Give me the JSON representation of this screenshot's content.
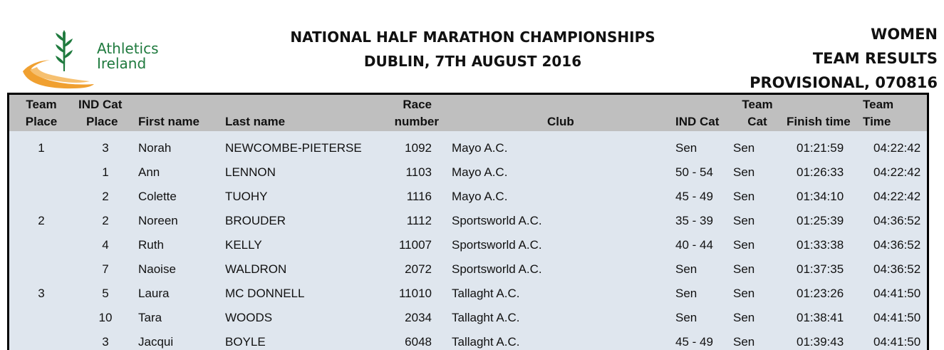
{
  "header": {
    "logo_text_line1": "Athletics",
    "logo_text_line2": "Ireland",
    "title_line1": "NATIONAL HALF MARATHON CHAMPIONSHIPS",
    "title_line2": "DUBLIN, 7TH AUGUST 2016",
    "right_line1": "WOMEN",
    "right_line2": "TEAM RESULTS",
    "right_line3": "PROVISIONAL, 070816"
  },
  "colors": {
    "logo_green": "#1f7a3e",
    "logo_orange": "#f0a030",
    "header_bg": "#bfbfbf",
    "row_bg": "#dfe6ee"
  },
  "table": {
    "columns": {
      "team_place_1": "Team",
      "team_place_2": "Place",
      "ind_cat_place_1": "IND Cat",
      "ind_cat_place_2": "Place",
      "first_name": "First name",
      "last_name": "Last name",
      "race_number_1": "Race",
      "race_number_2": "number",
      "club": "Club",
      "ind_cat": "IND Cat",
      "team_cat_1": "Team",
      "team_cat_2": "Cat",
      "finish_time": "Finish time",
      "team_time_1": "Team",
      "team_time_2": "Time"
    },
    "rows": [
      {
        "team_place": "1",
        "ind_place": "3",
        "first": "Norah",
        "last": "NEWCOMBE-PIETERSE",
        "race": "1092",
        "club": "Mayo A.C.",
        "ind_cat": "Sen",
        "team_cat": "Sen",
        "finish": "01:21:59",
        "team_time": "04:22:42"
      },
      {
        "team_place": "",
        "ind_place": "1",
        "first": "Ann",
        "last": "LENNON",
        "race": "1103",
        "club": "Mayo A.C.",
        "ind_cat": "50 - 54",
        "team_cat": "Sen",
        "finish": "01:26:33",
        "team_time": "04:22:42"
      },
      {
        "team_place": "",
        "ind_place": "2",
        "first": "Colette",
        "last": "TUOHY",
        "race": "1116",
        "club": "Mayo A.C.",
        "ind_cat": "45 - 49",
        "team_cat": "Sen",
        "finish": "01:34:10",
        "team_time": "04:22:42"
      },
      {
        "team_place": "2",
        "ind_place": "2",
        "first": "Noreen",
        "last": "BROUDER",
        "race": "1112",
        "club": "Sportsworld A.C.",
        "ind_cat": "35 - 39",
        "team_cat": "Sen",
        "finish": "01:25:39",
        "team_time": "04:36:52"
      },
      {
        "team_place": "",
        "ind_place": "4",
        "first": "Ruth",
        "last": "KELLY",
        "race": "11007",
        "club": "Sportsworld A.C.",
        "ind_cat": "40 - 44",
        "team_cat": "Sen",
        "finish": "01:33:38",
        "team_time": "04:36:52"
      },
      {
        "team_place": "",
        "ind_place": "7",
        "first": "Naoise",
        "last": "WALDRON",
        "race": "2072",
        "club": "Sportsworld A.C.",
        "ind_cat": "Sen",
        "team_cat": "Sen",
        "finish": "01:37:35",
        "team_time": "04:36:52"
      },
      {
        "team_place": "3",
        "ind_place": "5",
        "first": "Laura",
        "last": "MC DONNELL",
        "race": "11010",
        "club": "Tallaght A.C.",
        "ind_cat": "Sen",
        "team_cat": "Sen",
        "finish": "01:23:26",
        "team_time": "04:41:50"
      },
      {
        "team_place": "",
        "ind_place": "10",
        "first": "Tara",
        "last": "WOODS",
        "race": "2034",
        "club": "Tallaght A.C.",
        "ind_cat": "Sen",
        "team_cat": "Sen",
        "finish": "01:38:41",
        "team_time": "04:41:50"
      },
      {
        "team_place": "",
        "ind_place": "3",
        "first": "Jacqui",
        "last": "BOYLE",
        "race": "6048",
        "club": "Tallaght A.C.",
        "ind_cat": "45 - 49",
        "team_cat": "Sen",
        "finish": "01:39:43",
        "team_time": "04:41:50"
      }
    ]
  }
}
